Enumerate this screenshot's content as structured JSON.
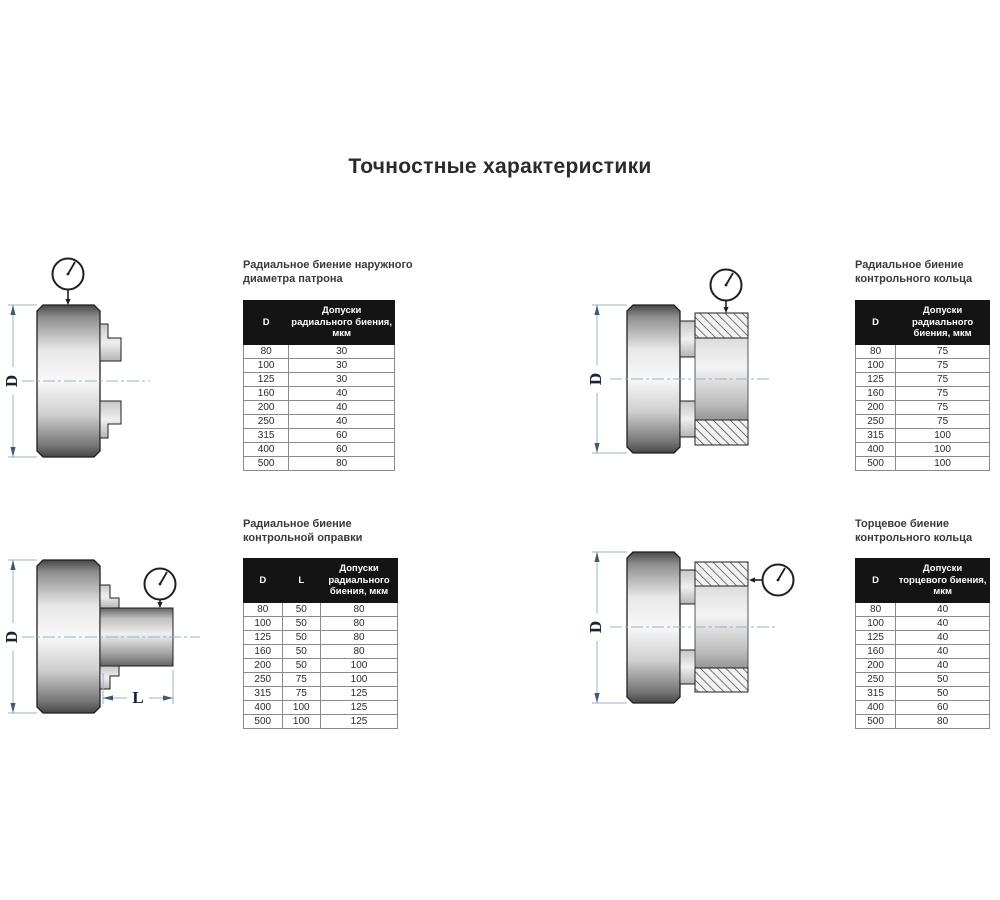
{
  "page": {
    "title": "Точностные характеристики"
  },
  "dims": {
    "d_label": "D",
    "l_label": "L"
  },
  "colors": {
    "table_header_bg": "#141414",
    "table_header_text": "#ffffff",
    "dimension_line": "#9ab0c4",
    "drawing_outline": "#1f1f1f",
    "label_text": "#3a3a3a"
  },
  "sections": {
    "chuck_od": {
      "label": "Радиальное биение наружного диаметра патрона",
      "table": {
        "columns": [
          "D",
          "Допуски радиального биения, мкм"
        ],
        "rows": [
          [
            "80",
            "30"
          ],
          [
            "100",
            "30"
          ],
          [
            "125",
            "30"
          ],
          [
            "160",
            "40"
          ],
          [
            "200",
            "40"
          ],
          [
            "250",
            "40"
          ],
          [
            "315",
            "60"
          ],
          [
            "400",
            "60"
          ],
          [
            "500",
            "80"
          ]
        ]
      }
    },
    "ring_radial": {
      "label": "Радиальное биение контрольного кольца",
      "table": {
        "columns": [
          "D",
          "Допуски радиального биения, мкм"
        ],
        "rows": [
          [
            "80",
            "75"
          ],
          [
            "100",
            "75"
          ],
          [
            "125",
            "75"
          ],
          [
            "160",
            "75"
          ],
          [
            "200",
            "75"
          ],
          [
            "250",
            "75"
          ],
          [
            "315",
            "100"
          ],
          [
            "400",
            "100"
          ],
          [
            "500",
            "100"
          ]
        ]
      }
    },
    "mandrel_radial": {
      "label": "Радиальное биение контрольной оправки",
      "table": {
        "columns": [
          "D",
          "L",
          "Допуски радиального биения, мкм"
        ],
        "rows": [
          [
            "80",
            "50",
            "80"
          ],
          [
            "100",
            "50",
            "80"
          ],
          [
            "125",
            "50",
            "80"
          ],
          [
            "160",
            "50",
            "80"
          ],
          [
            "200",
            "50",
            "100"
          ],
          [
            "250",
            "75",
            "100"
          ],
          [
            "315",
            "75",
            "125"
          ],
          [
            "400",
            "100",
            "125"
          ],
          [
            "500",
            "100",
            "125"
          ]
        ]
      }
    },
    "ring_face": {
      "label": "Торцевое биение контрольного кольца",
      "table": {
        "columns": [
          "D",
          "Допуски торцевого биения, мкм"
        ],
        "rows": [
          [
            "80",
            "40"
          ],
          [
            "100",
            "40"
          ],
          [
            "125",
            "40"
          ],
          [
            "160",
            "40"
          ],
          [
            "200",
            "40"
          ],
          [
            "250",
            "50"
          ],
          [
            "315",
            "50"
          ],
          [
            "400",
            "60"
          ],
          [
            "500",
            "80"
          ]
        ]
      }
    }
  }
}
